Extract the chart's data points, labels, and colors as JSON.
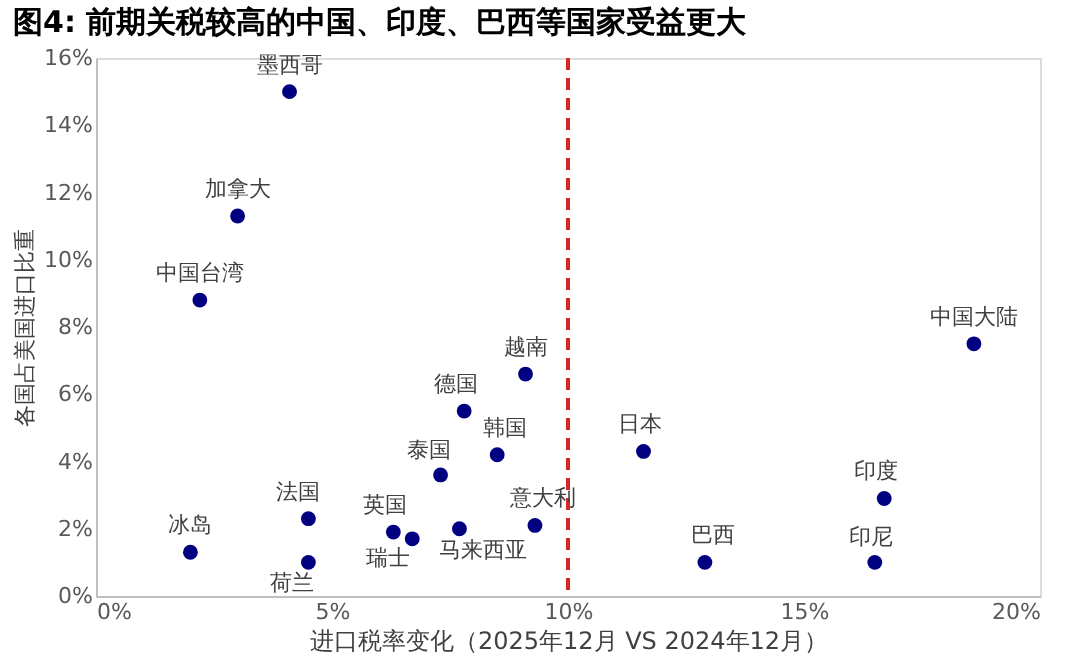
{
  "chart_data": {
    "type": "scatter",
    "title": "图4:  前期关税较高的中国、印度、巴西等国家受益更大",
    "xlabel": "进口税率变化（2025年12月 VS 2024年12月）",
    "ylabel": "各国占美国进口比重",
    "xlim": [
      0,
      20
    ],
    "xticks": [
      {
        "value": 0,
        "label": "0%"
      },
      {
        "value": 5,
        "label": "5%"
      },
      {
        "value": 10,
        "label": "10%"
      },
      {
        "value": 15,
        "label": "15%"
      },
      {
        "value": 20,
        "label": "20%"
      }
    ],
    "ylim": [
      0,
      16
    ],
    "yticks": [
      {
        "value": 0,
        "label": "0%"
      },
      {
        "value": 2,
        "label": "2%"
      },
      {
        "value": 4,
        "label": "4%"
      },
      {
        "value": 6,
        "label": "6%"
      },
      {
        "value": 8,
        "label": "8%"
      },
      {
        "value": 10,
        "label": "10%"
      },
      {
        "value": 12,
        "label": "12%"
      },
      {
        "value": 14,
        "label": "14%"
      },
      {
        "value": 16,
        "label": "16%"
      }
    ],
    "grid": false,
    "legend": false,
    "marker": "circle",
    "ref_lines": [
      {
        "axis": "x",
        "value": 10,
        "color": "#d62728",
        "line_style": "dashed"
      }
    ],
    "series": [
      {
        "name": "墨西哥",
        "color": "#000080",
        "x": [
          4.1
        ],
        "values": [
          15.0
        ]
      },
      {
        "name": "加拿大",
        "color": "#000080",
        "x": [
          3.0
        ],
        "values": [
          11.3
        ]
      },
      {
        "name": "中国台湾",
        "color": "#000080",
        "x": [
          2.2
        ],
        "values": [
          8.8
        ]
      },
      {
        "name": "冰岛",
        "color": "#000080",
        "x": [
          2.0
        ],
        "values": [
          1.3
        ]
      },
      {
        "name": "法国",
        "color": "#000080",
        "x": [
          4.5
        ],
        "values": [
          2.3
        ]
      },
      {
        "name": "荷兰",
        "color": "#000080",
        "x": [
          4.5
        ],
        "values": [
          1.0
        ]
      },
      {
        "name": "英国",
        "color": "#000080",
        "x": [
          6.3
        ],
        "values": [
          1.9
        ]
      },
      {
        "name": "瑞士",
        "color": "#000080",
        "x": [
          6.7
        ],
        "values": [
          1.7
        ]
      },
      {
        "name": "泰国",
        "color": "#000080",
        "x": [
          7.3
        ],
        "values": [
          3.6
        ]
      },
      {
        "name": "马来西亚",
        "color": "#000080",
        "x": [
          7.7
        ],
        "values": [
          2.0
        ]
      },
      {
        "name": "德国",
        "color": "#000080",
        "x": [
          7.8
        ],
        "values": [
          5.5
        ]
      },
      {
        "name": "韩国",
        "color": "#000080",
        "x": [
          8.5
        ],
        "values": [
          4.2
        ]
      },
      {
        "name": "越南",
        "color": "#000080",
        "x": [
          9.1
        ],
        "values": [
          6.6
        ]
      },
      {
        "name": "意大利",
        "color": "#000080",
        "x": [
          9.3
        ],
        "values": [
          2.1
        ]
      },
      {
        "name": "日本",
        "color": "#000080",
        "x": [
          11.6
        ],
        "values": [
          4.3
        ]
      },
      {
        "name": "巴西",
        "color": "#000080",
        "x": [
          12.9
        ],
        "values": [
          1.0
        ]
      },
      {
        "name": "印尼",
        "color": "#000080",
        "x": [
          16.5
        ],
        "values": [
          1.0
        ]
      },
      {
        "name": "印度",
        "color": "#000080",
        "x": [
          16.7
        ],
        "values": [
          2.9
        ]
      },
      {
        "name": "中国大陆",
        "color": "#000080",
        "x": [
          18.6
        ],
        "values": [
          7.5
        ]
      }
    ]
  }
}
